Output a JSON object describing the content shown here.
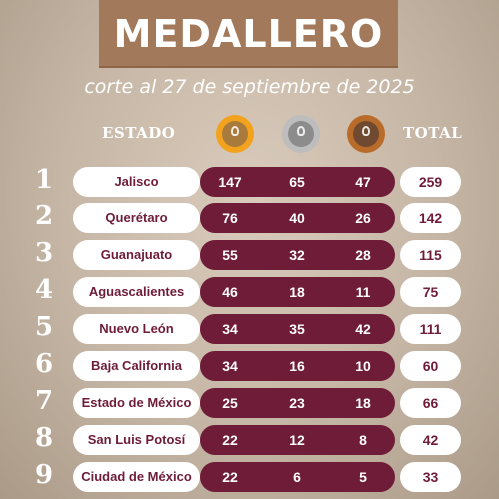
{
  "header": {
    "title": "MEDALLERO",
    "subtitle": "corte al 27 de septiembre de 2025"
  },
  "columns": {
    "state": "ESTADO",
    "total": "TOTAL",
    "medal_icons": [
      "gold-medal-icon",
      "silver-medal-icon",
      "bronze-medal-icon"
    ]
  },
  "colors": {
    "accent": "#6e1c38",
    "banner": "#a2795a",
    "gold": "#f3a21d",
    "silver": "#bdbdbd",
    "bronze": "#b96b2a"
  },
  "rows": [
    {
      "rank": "1",
      "state": "Jalisco",
      "gold": "147",
      "silver": "65",
      "bronze": "47",
      "total": "259"
    },
    {
      "rank": "2",
      "state": "Querétaro",
      "gold": "76",
      "silver": "40",
      "bronze": "26",
      "total": "142"
    },
    {
      "rank": "3",
      "state": "Guanajuato",
      "gold": "55",
      "silver": "32",
      "bronze": "28",
      "total": "115"
    },
    {
      "rank": "4",
      "state": "Aguascalientes",
      "gold": "46",
      "silver": "18",
      "bronze": "11",
      "total": "75"
    },
    {
      "rank": "5",
      "state": "Nuevo León",
      "gold": "34",
      "silver": "35",
      "bronze": "42",
      "total": "111"
    },
    {
      "rank": "6",
      "state": "Baja California",
      "gold": "34",
      "silver": "16",
      "bronze": "10",
      "total": "60"
    },
    {
      "rank": "7",
      "state": "Estado de México",
      "gold": "25",
      "silver": "23",
      "bronze": "18",
      "total": "66"
    },
    {
      "rank": "8",
      "state": "San Luis Potosí",
      "gold": "22",
      "silver": "12",
      "bronze": "8",
      "total": "42"
    },
    {
      "rank": "9",
      "state": "Ciudad de México",
      "gold": "22",
      "silver": "6",
      "bronze": "5",
      "total": "33"
    }
  ]
}
